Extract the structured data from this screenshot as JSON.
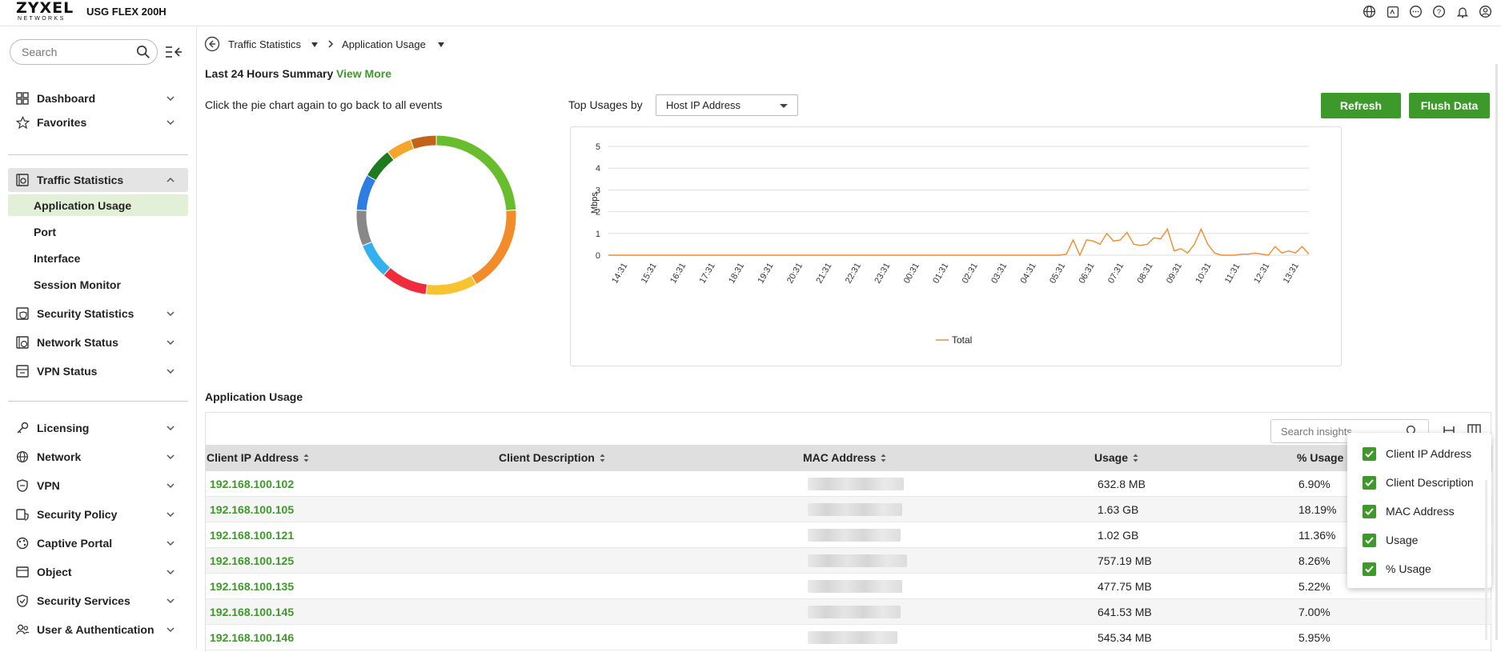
{
  "header": {
    "logo_main": "ZYXEL",
    "logo_sub": "NETWORKS",
    "model": "USG FLEX 200H",
    "icons": [
      "globe-icon",
      "terminal-icon",
      "more-icon",
      "help-icon",
      "bell-icon",
      "user-icon"
    ]
  },
  "sidebar": {
    "search_placeholder": "Search",
    "items": [
      {
        "label": "Dashboard",
        "icon": "dashboard-icon"
      },
      {
        "label": "Favorites",
        "icon": "star-icon"
      },
      {
        "label": "Traffic Statistics",
        "icon": "traffic-statistics-icon"
      },
      {
        "label": "Security Statistics",
        "icon": "security-statistics-icon"
      },
      {
        "label": "Network Status",
        "icon": "network-status-icon"
      },
      {
        "label": "VPN Status",
        "icon": "vpn-status-icon"
      },
      {
        "label": "Licensing",
        "icon": "key-icon"
      },
      {
        "label": "Network",
        "icon": "globe-icon"
      },
      {
        "label": "VPN",
        "icon": "shield-icon"
      },
      {
        "label": "Security Policy",
        "icon": "security-policy-icon"
      },
      {
        "label": "Captive Portal",
        "icon": "portal-icon"
      },
      {
        "label": "Object",
        "icon": "object-icon"
      },
      {
        "label": "Security Services",
        "icon": "security-services-icon"
      },
      {
        "label": "User & Authentication",
        "icon": "users-icon"
      }
    ],
    "sub_items": [
      "Application Usage",
      "Port",
      "Interface",
      "Session Monitor"
    ]
  },
  "breadcrumb": {
    "first": "Traffic Statistics",
    "second": "Application Usage"
  },
  "summary": {
    "title": "Last 24 Hours Summary",
    "view_more": "View More",
    "hint": "Click the pie chart again to go back to all events",
    "top_usages_label": "Top Usages by",
    "top_usages_value": "Host IP Address"
  },
  "buttons": {
    "refresh": "Refresh",
    "flush": "Flush Data"
  },
  "donut": {
    "colors": [
      "#67bd2b",
      "#f28b2a",
      "#f8c330",
      "#ef2b3c",
      "#33b0ee",
      "#888888",
      "#2f7de1",
      "#1f7a1f",
      "#f6a52b",
      "#c26418"
    ],
    "values": [
      23,
      17,
      10,
      9,
      7,
      7,
      7,
      6,
      5,
      5
    ]
  },
  "chart_data": {
    "type": "line",
    "ylabel": "Mbps",
    "ylim": [
      0,
      5
    ],
    "yticks": [
      "0",
      "1",
      "2",
      "3",
      "4",
      "5"
    ],
    "xticks": [
      "14:31",
      "15:31",
      "16:31",
      "17:31",
      "18:31",
      "19:31",
      "20:31",
      "21:31",
      "22:31",
      "23:31",
      "00:31",
      "01:31",
      "02:31",
      "03:31",
      "04:31",
      "05:31",
      "06:31",
      "07:31",
      "08:31",
      "09:31",
      "10:31",
      "11:31",
      "12:31",
      "13:31"
    ],
    "series": [
      {
        "name": "Total",
        "color": "#f28b2a",
        "values": [
          0,
          0,
          0,
          0,
          0,
          0,
          0,
          0,
          0,
          0,
          0,
          0,
          0,
          0,
          0,
          0,
          0,
          0,
          0,
          0,
          0,
          0,
          0,
          0,
          0,
          0,
          0,
          0,
          0,
          0,
          0,
          0,
          0,
          0,
          0,
          0,
          0,
          0,
          0,
          0,
          0,
          0,
          0,
          0,
          0,
          0,
          0,
          0,
          0,
          0,
          0,
          0,
          0,
          0,
          0,
          0,
          0,
          0,
          0,
          0,
          0,
          0,
          0,
          0,
          0,
          0,
          0,
          0,
          0.05,
          0.7,
          0,
          0.7,
          0.65,
          0.5,
          1.0,
          0.65,
          0.7,
          1.05,
          0.5,
          0.45,
          0.5,
          0.8,
          0.75,
          1.2,
          0.2,
          0.3,
          0.1,
          0.5,
          1.2,
          0.5,
          0.1,
          0,
          0,
          0,
          0.05,
          0.05,
          0.1,
          0.05,
          0,
          0.4,
          0.1,
          0.2,
          0.1,
          0.4,
          0.05
        ]
      }
    ],
    "legend": "bottom-center"
  },
  "table": {
    "title": "Application Usage",
    "search_placeholder": "Search insights",
    "columns": [
      "Client IP Address",
      "Client Description",
      "MAC Address",
      "Usage",
      "% Usage"
    ],
    "rows": [
      {
        "ip": "192.168.100.102",
        "usage": "632.8 MB",
        "pct": "6.90%"
      },
      {
        "ip": "192.168.100.105",
        "usage": "1.63 GB",
        "pct": "18.19%"
      },
      {
        "ip": "192.168.100.121",
        "usage": "1.02 GB",
        "pct": "11.36%"
      },
      {
        "ip": "192.168.100.125",
        "usage": "757.19 MB",
        "pct": "8.26%"
      },
      {
        "ip": "192.168.100.135",
        "usage": "477.75 MB",
        "pct": "5.22%"
      },
      {
        "ip": "192.168.100.145",
        "usage": "641.53 MB",
        "pct": "7.00%"
      },
      {
        "ip": "192.168.100.146",
        "usage": "545.34 MB",
        "pct": "5.95%"
      }
    ]
  },
  "column_menu": [
    "Client IP Address",
    "Client Description",
    "MAC Address",
    "Usage",
    "% Usage"
  ]
}
